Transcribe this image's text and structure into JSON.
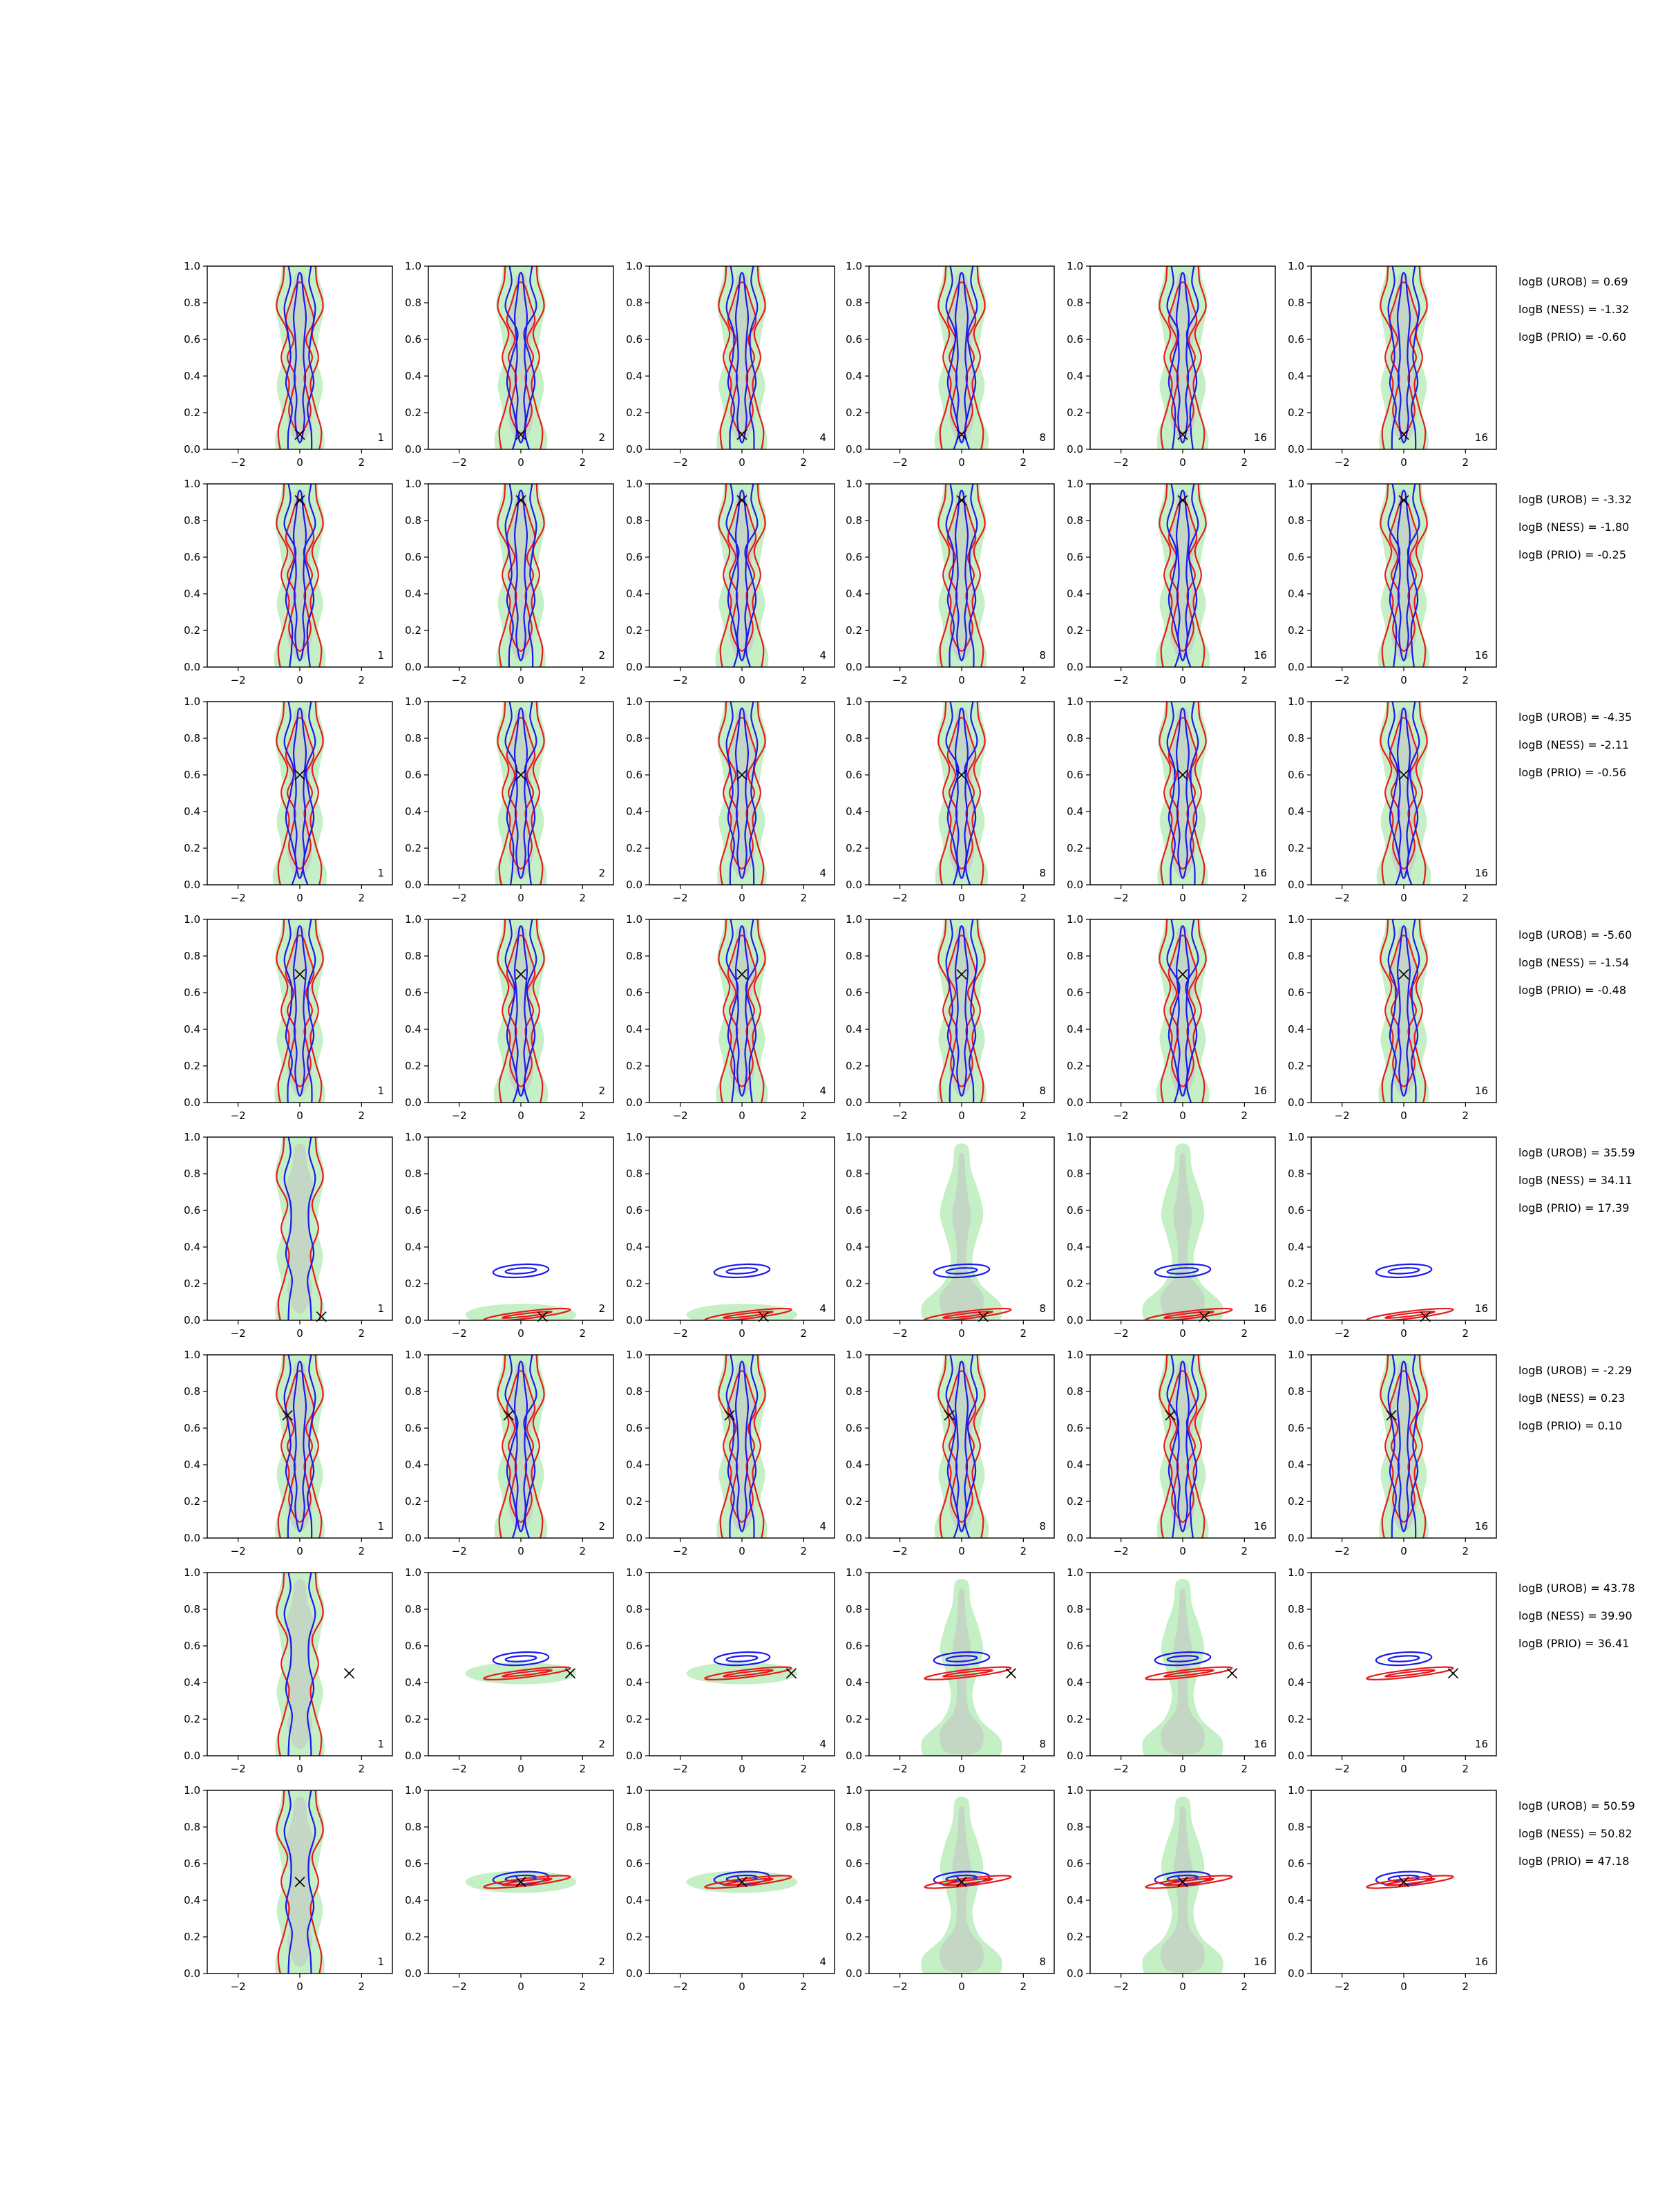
{
  "chart_data": {
    "type": "contour",
    "layout": {
      "rows": 8,
      "cols": 6
    },
    "xlim": [
      -3,
      3
    ],
    "ylim": [
      0,
      1
    ],
    "xticks": [
      -2,
      0,
      2
    ],
    "yticks": [
      0.0,
      0.2,
      0.4,
      0.6,
      0.8,
      1.0
    ],
    "xtick_labels": [
      "−2",
      "0",
      "2"
    ],
    "ytick_labels": [
      "0.0",
      "0.2",
      "0.4",
      "0.6",
      "0.8",
      "1.0"
    ],
    "column_labels": [
      "1",
      "2",
      "4",
      "8",
      "16",
      "16"
    ],
    "colors": {
      "prior_outer": "#c5efc5",
      "prior_inner": "#c4d6c4",
      "blue": "#1a1aee",
      "red": "#e61c1c"
    },
    "rows": [
      {
        "x": 0.0,
        "y": 0.08,
        "stats": [
          "logB (UROB) = 0.69",
          "logB (NESS) = -1.32",
          "logB (PRIO) = -0.60"
        ],
        "shape": "broad"
      },
      {
        "x": 0.0,
        "y": 0.91,
        "stats": [
          "logB (UROB) = -3.32",
          "logB (NESS) = -1.80",
          "logB (PRIO) = -0.25"
        ],
        "shape": "broad"
      },
      {
        "x": 0.0,
        "y": 0.6,
        "stats": [
          "logB (UROB) = -4.35",
          "logB (NESS) = -2.11",
          "logB (PRIO) = -0.56"
        ],
        "shape": "broad"
      },
      {
        "x": 0.0,
        "y": 0.7,
        "stats": [
          "logB (UROB) = -5.60",
          "logB (NESS) = -1.54",
          "logB (PRIO) = -0.48"
        ],
        "shape": "broad"
      },
      {
        "x": 0.7,
        "y": 0.02,
        "stats": [
          "logB (UROB) = 35.59",
          "logB (NESS) = 34.11",
          "logB (PRIO) = 17.39"
        ],
        "shape": "collapse",
        "blue_y": 0.27,
        "red_y": 0.03
      },
      {
        "x": -0.4,
        "y": 0.67,
        "stats": [
          "logB (UROB) = -2.29",
          "logB (NESS) = 0.23",
          "logB (PRIO) = 0.10"
        ],
        "shape": "broad"
      },
      {
        "x": 1.6,
        "y": 0.45,
        "stats": [
          "logB (UROB) = 43.78",
          "logB (NESS) = 39.90",
          "logB (PRIO) = 36.41"
        ],
        "shape": "collapse",
        "blue_y": 0.53,
        "red_y": 0.45
      },
      {
        "x": 0.0,
        "y": 0.5,
        "stats": [
          "logB (UROB) = 50.59",
          "logB (NESS) = 50.82",
          "logB (PRIO) = 47.18"
        ],
        "shape": "collapse",
        "blue_y": 0.52,
        "red_y": 0.5
      }
    ]
  }
}
